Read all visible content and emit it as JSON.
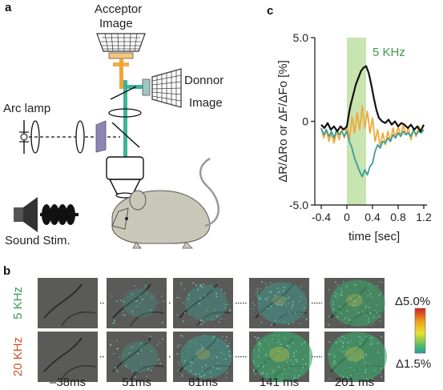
{
  "panel_a": {
    "letter": "a",
    "acceptor_label_1": "Acceptor",
    "acceptor_label_2": "Image",
    "donor_label_1": "Donnor",
    "donor_label_2": "Image",
    "arc_lamp_label": "Arc lamp",
    "sound_label": "Sound Stim.",
    "colors": {
      "acceptor_beam": "#f2a33a",
      "donor_beam": "#3fb39a",
      "filter": "#8b86b5",
      "mouse_body": "#c9c8b8"
    },
    "icons": [
      "arc-lamp-icon",
      "lens-icon",
      "filter-icon",
      "dichroic-mirror-icon",
      "objective-icon",
      "camera-icon",
      "speaker-icon",
      "mouse-icon"
    ]
  },
  "panel_c": {
    "letter": "c",
    "stim_label": "5 KHz",
    "colors": {
      "stim_band": "#c8e4b0",
      "ratio": "#111111",
      "acceptor": "#f2a93a",
      "donor": "#3a9e9a",
      "stim_label": "#3e9a4e"
    }
  },
  "chart_data": {
    "type": "line",
    "title": "",
    "xlabel": "time [sec]",
    "ylabel": "ΔR/ΔRo or ΔF/ΔFo [%]",
    "xlim": [
      -0.5,
      1.25
    ],
    "ylim": [
      -5.0,
      5.0
    ],
    "x_ticks": [
      -0.4,
      0,
      0.4,
      0.8,
      1.2
    ],
    "x_tick_labels": [
      "-0.4",
      "0",
      "0.4",
      "0.8",
      "1.2"
    ],
    "y_ticks": [
      5.0,
      0,
      -5.0
    ],
    "y_tick_labels": [
      "5.0",
      "0",
      "-5.0"
    ],
    "stimulus_band": [
      0.0,
      0.3
    ],
    "grid": false,
    "series": [
      {
        "color": "#111111",
        "x": [
          -0.4,
          -0.35,
          -0.3,
          -0.25,
          -0.2,
          -0.15,
          -0.1,
          -0.05,
          0.0,
          0.03,
          0.06,
          0.1,
          0.14,
          0.18,
          0.22,
          0.26,
          0.3,
          0.34,
          0.38,
          0.42,
          0.46,
          0.5,
          0.55,
          0.6,
          0.65,
          0.7,
          0.75,
          0.8,
          0.85,
          0.9,
          0.95,
          1.0,
          1.05,
          1.1,
          1.15,
          1.2
        ],
        "values": [
          -0.2,
          -0.4,
          -0.1,
          -0.5,
          -0.3,
          -0.6,
          -0.3,
          -0.5,
          -0.3,
          0.4,
          1.0,
          1.6,
          2.2,
          2.6,
          3.0,
          3.2,
          3.3,
          2.9,
          2.2,
          1.4,
          0.7,
          0.2,
          0.0,
          -0.1,
          0.1,
          -0.2,
          0.0,
          -0.3,
          -0.1,
          -0.2,
          -0.4,
          -0.2,
          -0.5,
          -0.3,
          -0.6,
          -0.2
        ]
      },
      {
        "color": "#f2a93a",
        "x": [
          -0.4,
          -0.36,
          -0.32,
          -0.28,
          -0.24,
          -0.2,
          -0.16,
          -0.12,
          -0.08,
          -0.04,
          0.0,
          0.04,
          0.08,
          0.12,
          0.16,
          0.2,
          0.24,
          0.28,
          0.32,
          0.36,
          0.4,
          0.44,
          0.48,
          0.52,
          0.56,
          0.6,
          0.64,
          0.68,
          0.72,
          0.76,
          0.8,
          0.84,
          0.88,
          0.92,
          0.96,
          1.0,
          1.04,
          1.08,
          1.12,
          1.16,
          1.2
        ],
        "values": [
          -0.4,
          -1.0,
          -0.5,
          -1.2,
          -0.7,
          -1.3,
          -0.6,
          -1.1,
          -0.5,
          -1.0,
          -0.3,
          -1.1,
          0.3,
          -0.7,
          0.5,
          -0.5,
          0.9,
          -0.4,
          0.6,
          -0.7,
          0.2,
          -1.2,
          -0.5,
          -1.5,
          -0.7,
          -1.4,
          -0.6,
          -1.2,
          -0.4,
          -1.0,
          -0.3,
          -0.9,
          -0.2,
          -0.8,
          -0.4,
          -1.1,
          -0.5,
          -0.9,
          -0.3,
          -0.7,
          -0.5
        ]
      },
      {
        "color": "#3a9e9a",
        "x": [
          -0.4,
          -0.36,
          -0.32,
          -0.28,
          -0.24,
          -0.2,
          -0.16,
          -0.12,
          -0.08,
          -0.04,
          0.0,
          0.04,
          0.08,
          0.12,
          0.16,
          0.2,
          0.24,
          0.28,
          0.32,
          0.36,
          0.4,
          0.44,
          0.48,
          0.52,
          0.56,
          0.6,
          0.64,
          0.68,
          0.72,
          0.76,
          0.8,
          0.84,
          0.88,
          0.92,
          0.96,
          1.0,
          1.04,
          1.08,
          1.12,
          1.16,
          1.2
        ],
        "values": [
          -0.4,
          -0.8,
          -0.5,
          -0.9,
          -0.6,
          -1.0,
          -0.5,
          -0.8,
          -0.6,
          -0.9,
          -0.6,
          -1.2,
          -1.6,
          -2.2,
          -2.6,
          -3.0,
          -3.3,
          -2.9,
          -3.2,
          -2.7,
          -2.5,
          -1.8,
          -1.4,
          -1.6,
          -1.2,
          -1.3,
          -1.0,
          -1.2,
          -0.8,
          -1.0,
          -0.7,
          -0.9,
          -0.6,
          -0.8,
          -0.7,
          -0.9,
          -0.5,
          -0.8,
          -0.6,
          -0.7,
          -0.5
        ]
      }
    ]
  },
  "panel_b": {
    "letter": "b",
    "row_labels": [
      {
        "text": "5 KHz",
        "color": "#3e9a4e"
      },
      {
        "text": "20 KHz",
        "color": "#d0502e"
      }
    ],
    "time_labels": [
      "–38ms",
      "51ms",
      "81ms",
      "141 ms",
      "201 ms"
    ],
    "colorbar_top": "Δ5.0%",
    "colorbar_bottom": "Δ1.5%",
    "activation_levels": [
      [
        0.0,
        0.12,
        0.35,
        0.55,
        0.7
      ],
      [
        0.0,
        0.2,
        0.6,
        0.85,
        0.8
      ]
    ]
  }
}
